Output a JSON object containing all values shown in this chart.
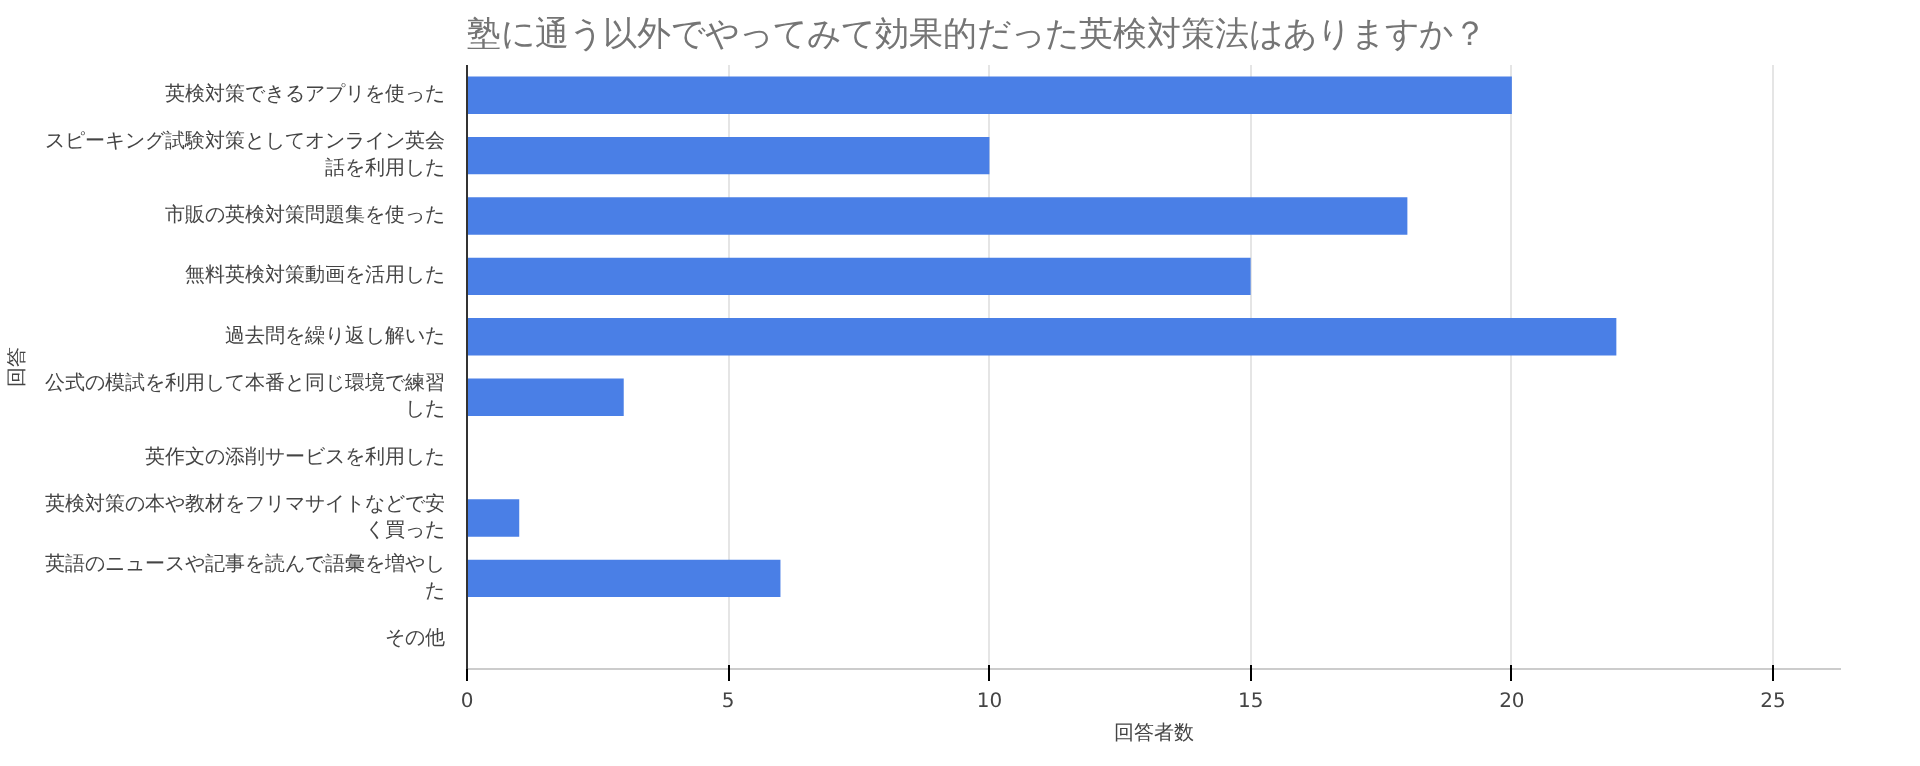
{
  "chart_data": {
    "type": "bar",
    "orientation": "horizontal",
    "title": "塾に通う以外でやってみて効果的だった英検対策法はありますか？",
    "xlabel": "回答者数",
    "ylabel": "回答",
    "categories": [
      "英検対策できるアプリを使った",
      "スピーキング試験対策としてオンライン英会話を利用した",
      "市販の英検対策問題集を使った",
      "無料英検対策動画を活用した",
      "過去問を繰り返し解いた",
      "公式の模試を利用して本番と同じ環境で練習した",
      "英作文の添削サービスを利用した",
      "英検対策の本や教材をフリマサイトなどで安く買った",
      "英語のニュースや記事を読んで語彙を増やした",
      "その他"
    ],
    "values": [
      20,
      10,
      18,
      15,
      22,
      3,
      0,
      1,
      6,
      0
    ],
    "color": "#4a7fe6",
    "xlim": [
      0,
      26.3
    ],
    "xticks": [
      0,
      5,
      10,
      15,
      20,
      25
    ],
    "grid": "x"
  }
}
